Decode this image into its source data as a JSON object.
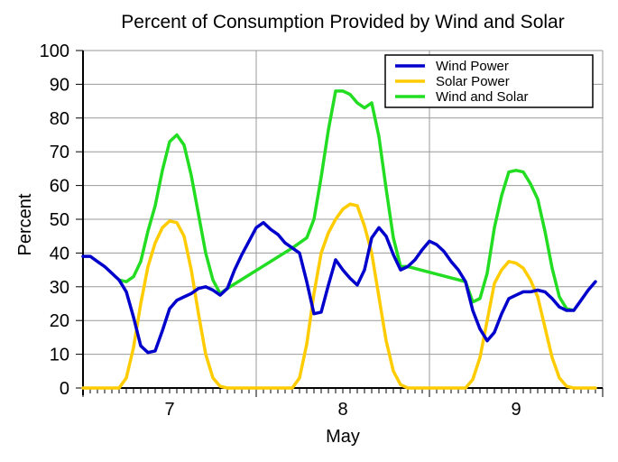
{
  "chart_data": {
    "type": "line",
    "title": "Percent of Consumption Provided by Wind and Solar",
    "xlabel": "May",
    "ylabel": "Percent",
    "ylim": [
      0,
      100
    ],
    "yticks": [
      0,
      10,
      20,
      30,
      40,
      50,
      60,
      70,
      80,
      90,
      100
    ],
    "xlim_hours": [
      0,
      72
    ],
    "x_unit": "hours since May 7 00:00",
    "xticks": [
      {
        "label": "7",
        "hour": 12
      },
      {
        "label": "8",
        "hour": 36
      },
      {
        "label": "9",
        "hour": 60
      }
    ],
    "day_boundaries_hours": [
      24,
      48
    ],
    "grid": true,
    "legend_position": "top-right",
    "series": [
      {
        "name": "Wind Power",
        "color": "#0000cc",
        "x": [
          0,
          1,
          2,
          3,
          4,
          5,
          6,
          7,
          8,
          9,
          10,
          11,
          12,
          13,
          14,
          15,
          16,
          17,
          18,
          19,
          20,
          21,
          22,
          23,
          24,
          25,
          26,
          27,
          28,
          29,
          30,
          31,
          32,
          33,
          34,
          35,
          36,
          37,
          38,
          39,
          40,
          41,
          42,
          43,
          44,
          45,
          46,
          47,
          48,
          49,
          50,
          51,
          52,
          53,
          54,
          55,
          56,
          57,
          58,
          59,
          60,
          61,
          62,
          63,
          64,
          65,
          66,
          67,
          68,
          69,
          70,
          71
        ],
        "values": [
          39,
          39,
          37.5,
          36,
          34,
          32,
          28.5,
          21,
          12.5,
          10.5,
          11,
          17,
          23.5,
          26,
          27,
          28,
          29.5,
          30,
          29,
          27.5,
          29.5,
          35,
          39.5,
          43.5,
          47.5,
          49,
          47,
          45.5,
          43,
          41.5,
          40,
          31.5,
          22,
          22.5,
          30.5,
          38,
          35,
          32.5,
          30.5,
          35,
          44.5,
          47.5,
          45,
          39.5,
          35,
          36,
          38,
          41,
          43.5,
          42.5,
          40.5,
          37.5,
          35,
          31.5,
          23,
          17.5,
          14,
          16.5,
          22,
          26.5,
          27.5,
          28.5,
          28.5,
          29,
          28.5,
          26.5,
          24,
          23,
          23,
          26,
          29,
          31.5
        ]
      },
      {
        "name": "Solar Power",
        "color": "#ffcc00",
        "x": [
          0,
          1,
          2,
          3,
          4,
          5,
          6,
          7,
          8,
          9,
          10,
          11,
          12,
          13,
          14,
          15,
          16,
          17,
          18,
          19,
          20,
          21,
          22,
          23,
          24,
          25,
          26,
          27,
          28,
          29,
          30,
          31,
          32,
          33,
          34,
          35,
          36,
          37,
          38,
          39,
          40,
          41,
          42,
          43,
          44,
          45,
          46,
          47,
          48,
          49,
          50,
          51,
          52,
          53,
          54,
          55,
          56,
          57,
          58,
          59,
          60,
          61,
          62,
          63,
          64,
          65,
          66,
          67,
          68,
          69,
          70,
          71
        ],
        "values": [
          0,
          0,
          0,
          0,
          0,
          0,
          3,
          12,
          25,
          36,
          43,
          47.5,
          49.5,
          49,
          45,
          35,
          22,
          10,
          3,
          0.5,
          0,
          0,
          0,
          0,
          0,
          0,
          0,
          0,
          0,
          0,
          3,
          13,
          28,
          40,
          46,
          50,
          53,
          54.5,
          54,
          48,
          40,
          27,
          14,
          5,
          1,
          0,
          0,
          0,
          0,
          0,
          0,
          0,
          0,
          0,
          2.5,
          9,
          20,
          31,
          35,
          37.5,
          37,
          35.5,
          32,
          27,
          18,
          9,
          3,
          0.5,
          0,
          0,
          0,
          0
        ]
      },
      {
        "name": "Wind and Solar",
        "color": "#22dd22",
        "x": [
          5,
          6,
          7,
          8,
          9,
          10,
          11,
          12,
          13,
          14,
          15,
          16,
          17,
          18,
          19,
          20,
          29,
          30,
          31,
          32,
          33,
          34,
          35,
          36,
          37,
          38,
          39,
          40,
          41,
          42,
          43,
          44,
          45,
          53,
          54,
          55,
          56,
          57,
          58,
          59,
          60,
          61,
          62,
          63,
          64,
          65,
          66,
          67,
          68
        ],
        "values": [
          32,
          31.5,
          33,
          37.5,
          46.5,
          54,
          64.5,
          73,
          75,
          72,
          63,
          51.5,
          40,
          32,
          28,
          29.5,
          41.5,
          43,
          44.5,
          50,
          62.5,
          76.5,
          88,
          88,
          87,
          84.5,
          83,
          84.5,
          74.5,
          59,
          44.5,
          36,
          36,
          31.5,
          25.5,
          26.5,
          34,
          47.5,
          57,
          64,
          64.5,
          64,
          60.5,
          56,
          46.5,
          35.5,
          27,
          23.5,
          23
        ]
      }
    ]
  }
}
